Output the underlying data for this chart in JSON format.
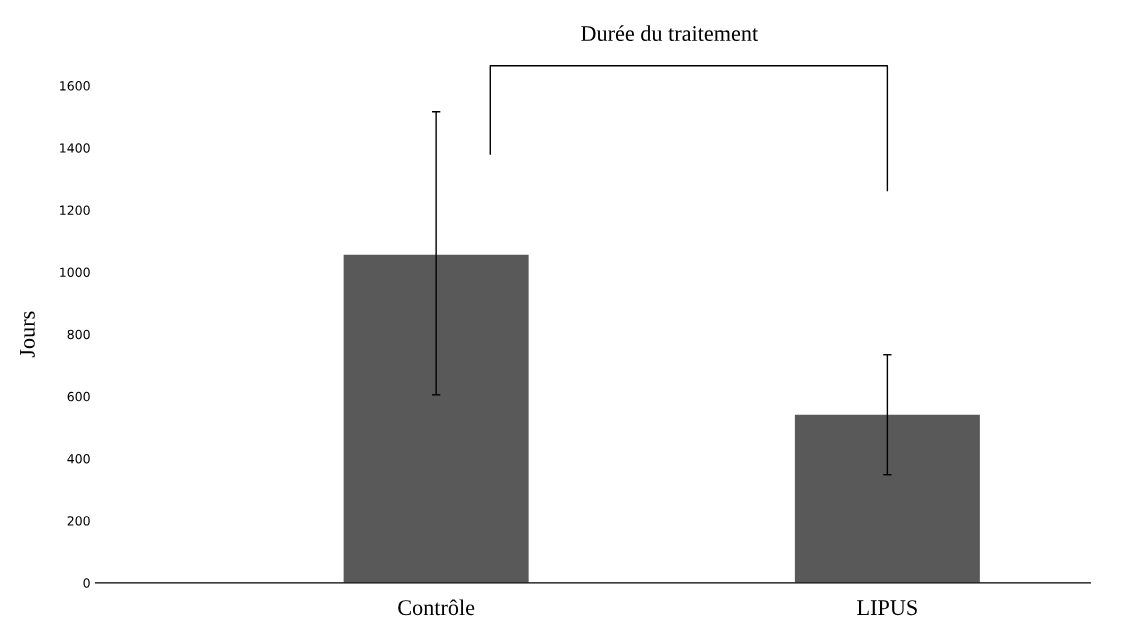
{
  "chart_data": {
    "type": "bar",
    "categories": [
      "Contrôle",
      "LIPUS"
    ],
    "values": [
      1056,
      541
    ],
    "errors": [
      [
        605,
        1516
      ],
      [
        348,
        734
      ]
    ],
    "color": "#595959",
    "ylabel": "Jours",
    "ylim": [
      0,
      1600
    ],
    "yticks": [
      0,
      200,
      400,
      600,
      800,
      1000,
      1200,
      1400,
      1600
    ],
    "grid": false,
    "legend": false,
    "annotations": [
      "Durée du traitement"
    ]
  }
}
